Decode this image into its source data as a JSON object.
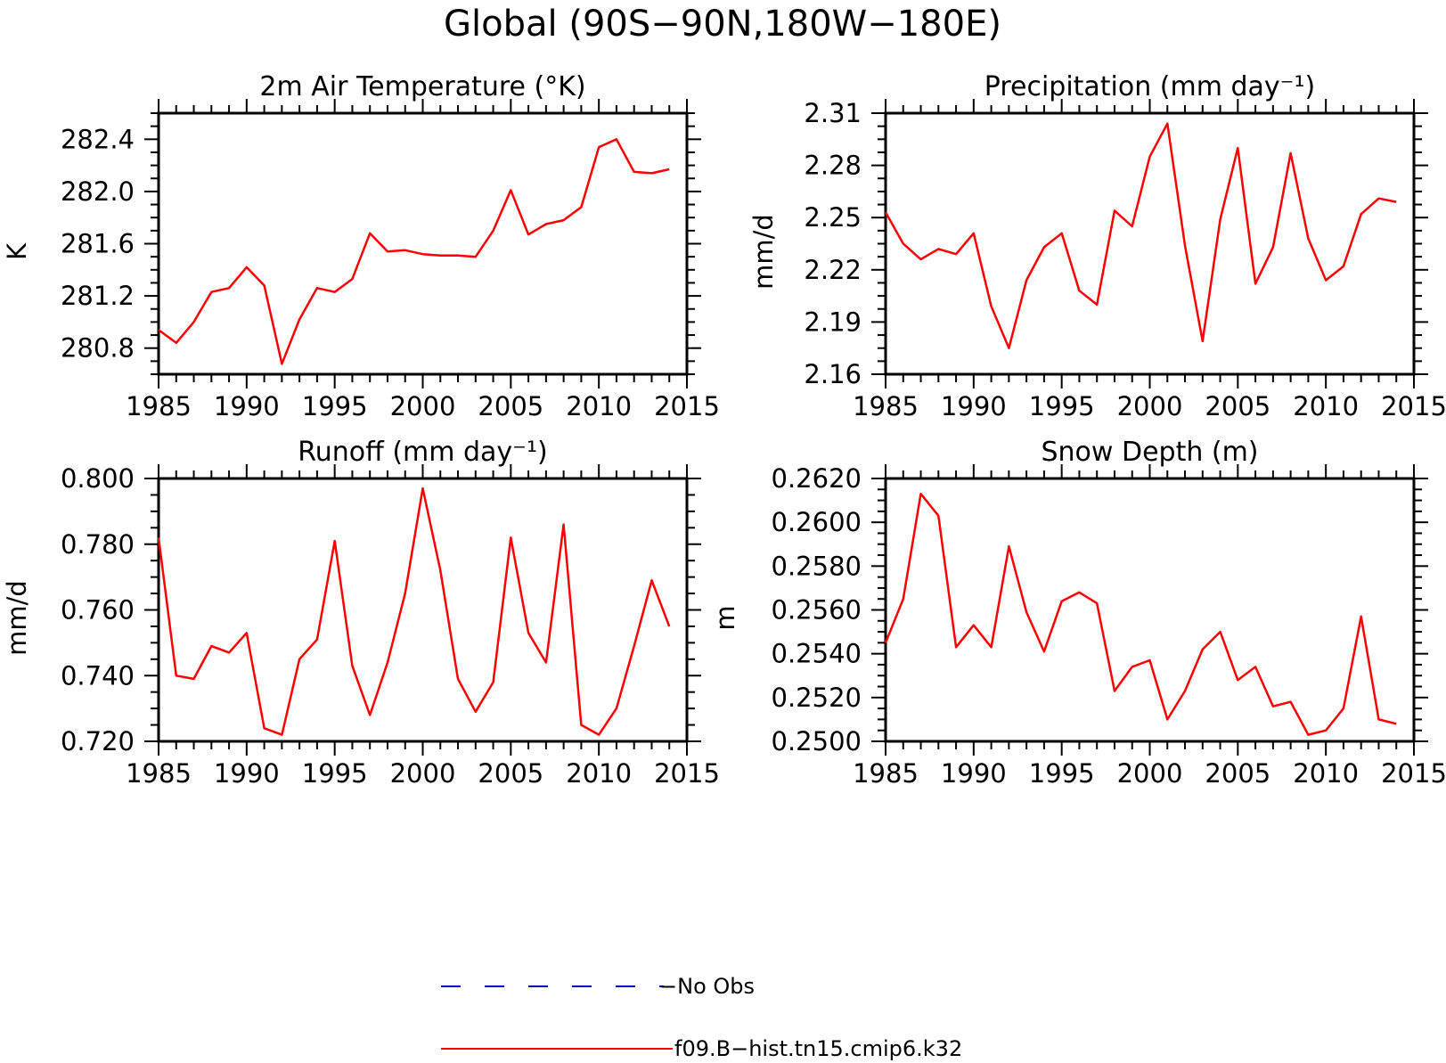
{
  "figure": {
    "title": "Global (90S−90N,180W−180E)"
  },
  "legend": {
    "entries": [
      {
        "label": "−No Obs",
        "color": "#0000cc",
        "dash": "dashed"
      },
      {
        "label": "f09.B−hist.tn15.cmip6.k32",
        "color": "#ff0000",
        "dash": "solid"
      }
    ]
  },
  "chart_data": [
    {
      "type": "line",
      "title": "2m Air Temperature (°K)",
      "ylabel": "K",
      "xlabel": "",
      "xlim": [
        1985,
        2015
      ],
      "ylim": [
        280.6,
        282.6
      ],
      "xticks": [
        1985,
        1990,
        1995,
        2000,
        2005,
        2010,
        2015
      ],
      "yticks": [
        "280.8",
        "281.2",
        "281.6",
        "282.0",
        "282.4"
      ],
      "series": [
        {
          "color": "#ff0000",
          "x": [
            1985,
            1986,
            1987,
            1988,
            1989,
            1990,
            1991,
            1992,
            1993,
            1994,
            1995,
            1996,
            1997,
            1998,
            1999,
            2000,
            2001,
            2002,
            2003,
            2004,
            2005,
            2006,
            2007,
            2008,
            2009,
            2010,
            2011,
            2012,
            2013,
            2014
          ],
          "values": [
            280.94,
            280.84,
            281.0,
            281.23,
            281.26,
            281.42,
            281.28,
            280.68,
            281.02,
            281.26,
            281.23,
            281.33,
            281.68,
            281.54,
            281.55,
            281.52,
            281.51,
            281.51,
            281.5,
            281.7,
            282.01,
            281.67,
            281.75,
            281.78,
            281.88,
            282.34,
            282.4,
            282.15,
            282.14,
            282.17
          ]
        }
      ]
    },
    {
      "type": "line",
      "title": "Precipitation (mm day⁻¹)",
      "ylabel": "mm/d",
      "xlabel": "",
      "xlim": [
        1985,
        2015
      ],
      "ylim": [
        2.16,
        2.31
      ],
      "xticks": [
        1985,
        1990,
        1995,
        2000,
        2005,
        2010,
        2015
      ],
      "yticks": [
        "2.16",
        "2.19",
        "2.22",
        "2.25",
        "2.28",
        "2.31"
      ],
      "series": [
        {
          "color": "#ff0000",
          "x": [
            1985,
            1986,
            1987,
            1988,
            1989,
            1990,
            1991,
            1992,
            1993,
            1994,
            1995,
            1996,
            1997,
            1998,
            1999,
            2000,
            2001,
            2002,
            2003,
            2004,
            2005,
            2006,
            2007,
            2008,
            2009,
            2010,
            2011,
            2012,
            2013,
            2014
          ],
          "values": [
            2.253,
            2.235,
            2.226,
            2.232,
            2.229,
            2.241,
            2.199,
            2.175,
            2.214,
            2.233,
            2.241,
            2.208,
            2.2,
            2.254,
            2.245,
            2.285,
            2.304,
            2.234,
            2.179,
            2.249,
            2.29,
            2.212,
            2.233,
            2.287,
            2.238,
            2.214,
            2.222,
            2.252,
            2.261,
            2.259
          ]
        }
      ]
    },
    {
      "type": "line",
      "title": "Runoff (mm day⁻¹)",
      "ylabel": "mm/d",
      "xlabel": "",
      "xlim": [
        1985,
        2015
      ],
      "ylim": [
        0.72,
        0.8
      ],
      "xticks": [
        1985,
        1990,
        1995,
        2000,
        2005,
        2010,
        2015
      ],
      "yticks": [
        "0.720",
        "0.740",
        "0.760",
        "0.780",
        "0.800"
      ],
      "series": [
        {
          "color": "#ff0000",
          "x": [
            1985,
            1986,
            1987,
            1988,
            1989,
            1990,
            1991,
            1992,
            1993,
            1994,
            1995,
            1996,
            1997,
            1998,
            1999,
            2000,
            2001,
            2002,
            2003,
            2004,
            2005,
            2006,
            2007,
            2008,
            2009,
            2010,
            2011,
            2012,
            2013,
            2014
          ],
          "values": [
            0.782,
            0.74,
            0.739,
            0.749,
            0.747,
            0.753,
            0.724,
            0.722,
            0.745,
            0.751,
            0.781,
            0.743,
            0.728,
            0.744,
            0.765,
            0.797,
            0.772,
            0.739,
            0.729,
            0.738,
            0.782,
            0.753,
            0.744,
            0.786,
            0.725,
            0.722,
            0.73,
            0.749,
            0.769,
            0.755
          ]
        }
      ]
    },
    {
      "type": "line",
      "title": "Snow Depth (m)",
      "ylabel": "m",
      "xlabel": "",
      "xlim": [
        1985,
        2015
      ],
      "ylim": [
        0.25,
        0.262
      ],
      "xticks": [
        1985,
        1990,
        1995,
        2000,
        2005,
        2010,
        2015
      ],
      "yticks": [
        "0.2500",
        "0.2520",
        "0.2540",
        "0.2560",
        "0.2580",
        "0.2600",
        "0.2620"
      ],
      "series": [
        {
          "color": "#ff0000",
          "x": [
            1985,
            1986,
            1987,
            1988,
            1989,
            1990,
            1991,
            1992,
            1993,
            1994,
            1995,
            1996,
            1997,
            1998,
            1999,
            2000,
            2001,
            2002,
            2003,
            2004,
            2005,
            2006,
            2007,
            2008,
            2009,
            2010,
            2011,
            2012,
            2013,
            2014
          ],
          "values": [
            0.2545,
            0.2565,
            0.2613,
            0.2603,
            0.2543,
            0.2553,
            0.2543,
            0.2589,
            0.2559,
            0.2541,
            0.2564,
            0.2568,
            0.2563,
            0.2523,
            0.2534,
            0.2537,
            0.251,
            0.2523,
            0.2542,
            0.255,
            0.2528,
            0.2534,
            0.2516,
            0.2518,
            0.2503,
            0.2505,
            0.2515,
            0.2557,
            0.251,
            0.2508
          ]
        }
      ]
    }
  ]
}
